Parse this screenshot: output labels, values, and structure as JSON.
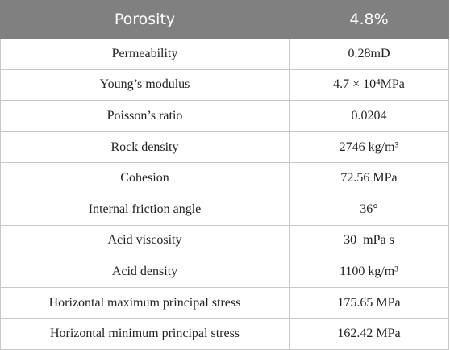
{
  "table": {
    "header": [
      "Porosity",
      "4.8%"
    ],
    "rows": [
      [
        "Permeability",
        "0.28mD"
      ],
      [
        "Young’s modulus",
        "4.7 × 10⁴MPa"
      ],
      [
        "Poisson’s ratio",
        "0.0204"
      ],
      [
        "Rock density",
        "2746 kg/m³"
      ],
      [
        "Cohesion",
        "72.56 MPa"
      ],
      [
        "Internal friction angle",
        "36°"
      ],
      [
        "Acid viscosity",
        "30  mPa s"
      ],
      [
        "Acid density",
        "1100 kg/m³"
      ],
      [
        "Horizontal maximum principal stress",
        "175.65 MPa"
      ],
      [
        "Horizontal minimum principal stress",
        "162.42 MPa"
      ]
    ]
  }
}
